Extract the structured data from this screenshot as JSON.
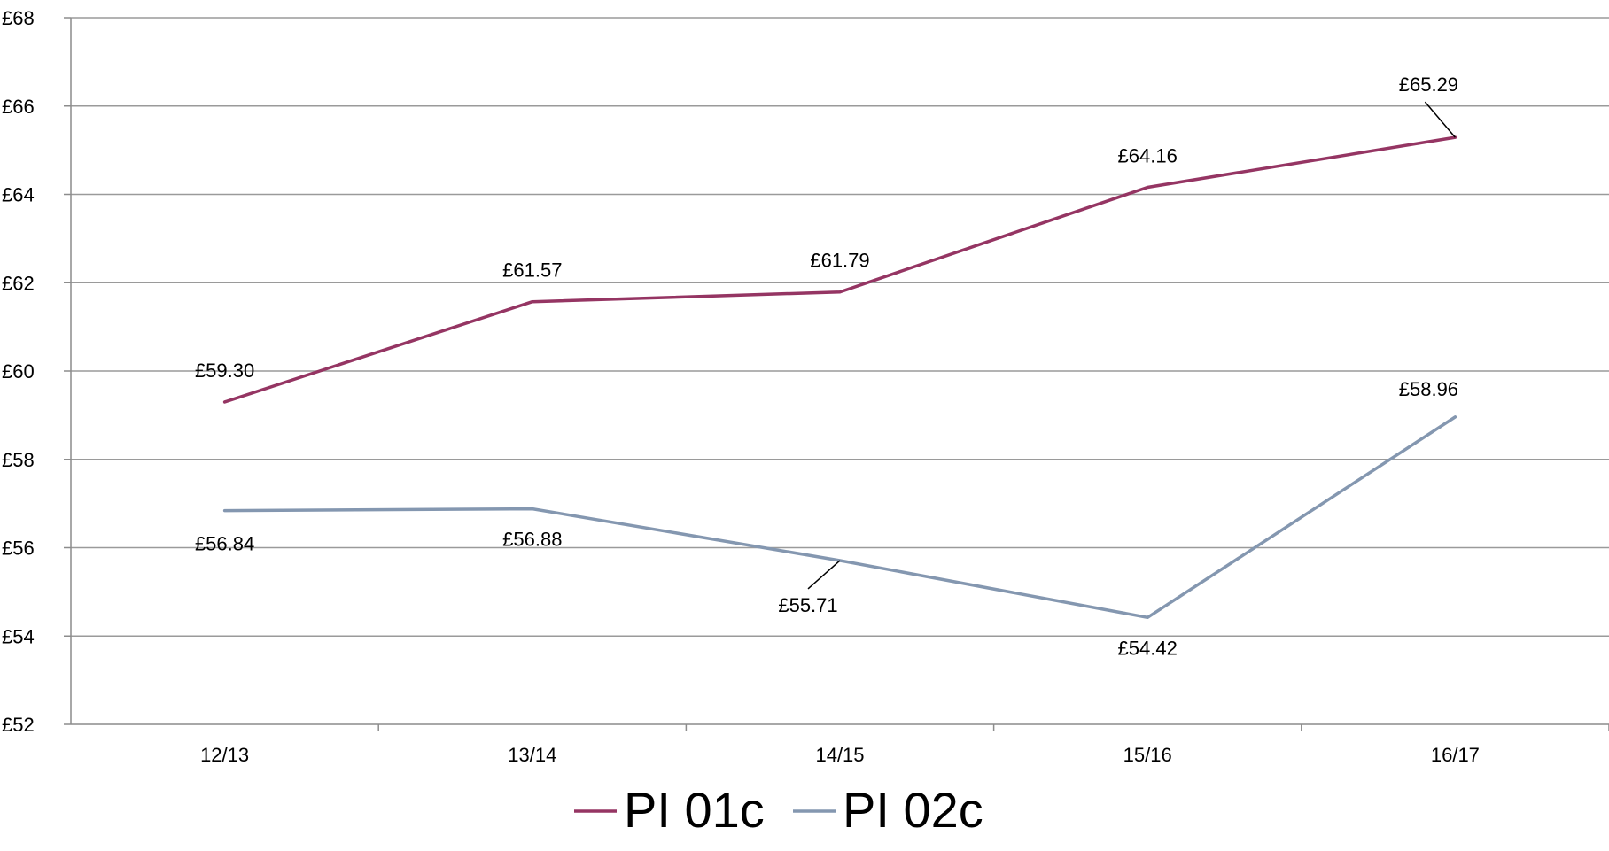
{
  "chart_data": {
    "type": "line",
    "categories": [
      "12/13",
      "13/14",
      "14/15",
      "15/16",
      "16/17"
    ],
    "series": [
      {
        "name": "PI 01c",
        "color": "#953563",
        "values": [
          59.3,
          61.57,
          61.79,
          64.16,
          65.29
        ],
        "labels": [
          "£59.30",
          "£61.57",
          "£61.79",
          "£64.16",
          "£65.29"
        ]
      },
      {
        "name": "PI 02c",
        "color": "#8497b0",
        "values": [
          56.84,
          56.88,
          55.71,
          54.42,
          58.96
        ],
        "labels": [
          "£56.84",
          "£56.88",
          "£55.71",
          "£54.42",
          "£58.96"
        ]
      }
    ],
    "yticks": [
      "£52",
      "£54",
      "£56",
      "£58",
      "£60",
      "£62",
      "£64",
      "£66",
      "£68"
    ],
    "ylim": [
      52,
      68
    ],
    "grid": true,
    "legend_position": "bottom"
  }
}
